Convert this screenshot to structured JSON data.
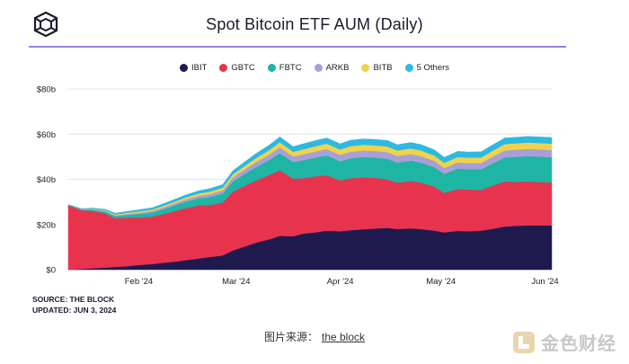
{
  "chart_data": {
    "type": "area",
    "stacked": true,
    "title": "Spot Bitcoin ETF AUM (Daily)",
    "ylim": [
      0,
      80
    ],
    "yticks": [
      "$0",
      "$20b",
      "$40b",
      "$60b",
      "$80b"
    ],
    "xticks": [
      "Feb '24",
      "Mar '24",
      "Apr '24",
      "May '24",
      "Jun '24"
    ],
    "grid": true,
    "legend_position": "top-center",
    "x": [
      "2024-01-11",
      "2024-01-15",
      "2024-01-18",
      "2024-01-22",
      "2024-01-25",
      "2024-01-29",
      "2024-02-01",
      "2024-02-05",
      "2024-02-08",
      "2024-02-12",
      "2024-02-15",
      "2024-02-19",
      "2024-02-22",
      "2024-02-26",
      "2024-02-29",
      "2024-03-04",
      "2024-03-07",
      "2024-03-11",
      "2024-03-14",
      "2024-03-18",
      "2024-03-21",
      "2024-03-25",
      "2024-03-28",
      "2024-04-01",
      "2024-04-04",
      "2024-04-08",
      "2024-04-11",
      "2024-04-15",
      "2024-04-18",
      "2024-04-22",
      "2024-04-25",
      "2024-04-29",
      "2024-05-02",
      "2024-05-06",
      "2024-05-09",
      "2024-05-13",
      "2024-05-16",
      "2024-05-20",
      "2024-05-23",
      "2024-05-27",
      "2024-05-30",
      "2024-06-03"
    ],
    "series": [
      {
        "name": "IBIT",
        "color": "#1f1a4e",
        "values": [
          0.1,
          0.3,
          0.6,
          0.9,
          1.2,
          1.6,
          2.1,
          2.5,
          3.0,
          3.6,
          4.2,
          5.0,
          5.6,
          6.3,
          8.5,
          10.5,
          12.0,
          13.5,
          15.0,
          14.8,
          16.0,
          16.6,
          17.3,
          17.0,
          17.5,
          17.9,
          18.2,
          18.5,
          18.0,
          18.3,
          18.0,
          17.3,
          16.5,
          17.2,
          17.0,
          17.3,
          18.0,
          19.1,
          19.4,
          19.6,
          19.6,
          19.6
        ]
      },
      {
        "name": "GBTC",
        "color": "#e8334f",
        "values": [
          28.5,
          26.0,
          25.5,
          24.0,
          21.5,
          21.5,
          21.0,
          21.0,
          21.5,
          22.5,
          23.0,
          23.5,
          23.0,
          23.5,
          26.0,
          27.0,
          27.5,
          28.5,
          29.0,
          25.5,
          24.5,
          24.8,
          24.5,
          22.5,
          23.0,
          23.0,
          22.5,
          21.5,
          20.5,
          21.0,
          20.5,
          19.5,
          17.5,
          18.5,
          18.5,
          18.0,
          19.0,
          20.0,
          19.5,
          19.5,
          19.2,
          19.0
        ]
      },
      {
        "name": "FBTC",
        "color": "#1fb5a5",
        "values": [
          0.1,
          0.3,
          0.5,
          0.8,
          1.0,
          1.2,
          1.5,
          1.8,
          2.1,
          2.5,
          2.9,
          3.2,
          3.5,
          3.9,
          4.6,
          5.3,
          6.0,
          6.7,
          7.6,
          7.3,
          8.0,
          8.4,
          8.8,
          8.5,
          8.8,
          9.0,
          9.0,
          9.1,
          8.9,
          9.0,
          8.9,
          8.6,
          8.4,
          9.1,
          9.0,
          9.2,
          9.8,
          10.6,
          11.0,
          11.2,
          11.3,
          11.2
        ]
      },
      {
        "name": "ARKB",
        "color": "#a89fd8",
        "values": [
          0.0,
          0.1,
          0.2,
          0.3,
          0.4,
          0.5,
          0.6,
          0.7,
          0.8,
          0.9,
          1.0,
          1.1,
          1.3,
          1.4,
          1.7,
          2.0,
          2.2,
          2.4,
          2.6,
          2.5,
          2.6,
          2.7,
          2.8,
          2.8,
          2.9,
          2.9,
          2.9,
          3.0,
          2.9,
          2.9,
          2.9,
          2.8,
          2.6,
          2.7,
          2.7,
          2.8,
          2.9,
          3.1,
          3.2,
          3.2,
          3.2,
          3.2
        ]
      },
      {
        "name": "BITB",
        "color": "#f0d34a",
        "values": [
          0.0,
          0.1,
          0.2,
          0.3,
          0.4,
          0.5,
          0.6,
          0.6,
          0.7,
          0.8,
          0.9,
          1.0,
          1.1,
          1.2,
          1.4,
          1.6,
          1.8,
          2.0,
          2.2,
          2.1,
          2.2,
          2.3,
          2.4,
          2.4,
          2.5,
          2.5,
          2.5,
          2.5,
          2.5,
          2.5,
          2.5,
          2.4,
          2.3,
          2.4,
          2.4,
          2.4,
          2.6,
          2.8,
          2.8,
          2.8,
          2.8,
          2.8
        ]
      },
      {
        "name": "5 Others",
        "color": "#2cb9e3",
        "values": [
          0.1,
          0.2,
          0.3,
          0.4,
          0.5,
          0.6,
          0.7,
          0.8,
          0.9,
          1.0,
          1.1,
          1.2,
          1.3,
          1.4,
          1.6,
          1.8,
          2.0,
          2.2,
          2.4,
          2.3,
          2.4,
          2.5,
          2.5,
          2.5,
          2.6,
          2.6,
          2.6,
          2.6,
          2.5,
          2.6,
          2.6,
          2.5,
          2.4,
          2.5,
          2.5,
          2.5,
          2.6,
          2.7,
          2.7,
          2.7,
          2.7,
          2.7
        ]
      }
    ]
  },
  "source_label": "SOURCE: THE BLOCK",
  "updated_label": "UPDATED: JUN 3, 2024",
  "caption": {
    "prefix": "图片来源：",
    "link": "the block"
  },
  "watermark": "金色财经",
  "logo_icon": "the-block-cube-logo"
}
